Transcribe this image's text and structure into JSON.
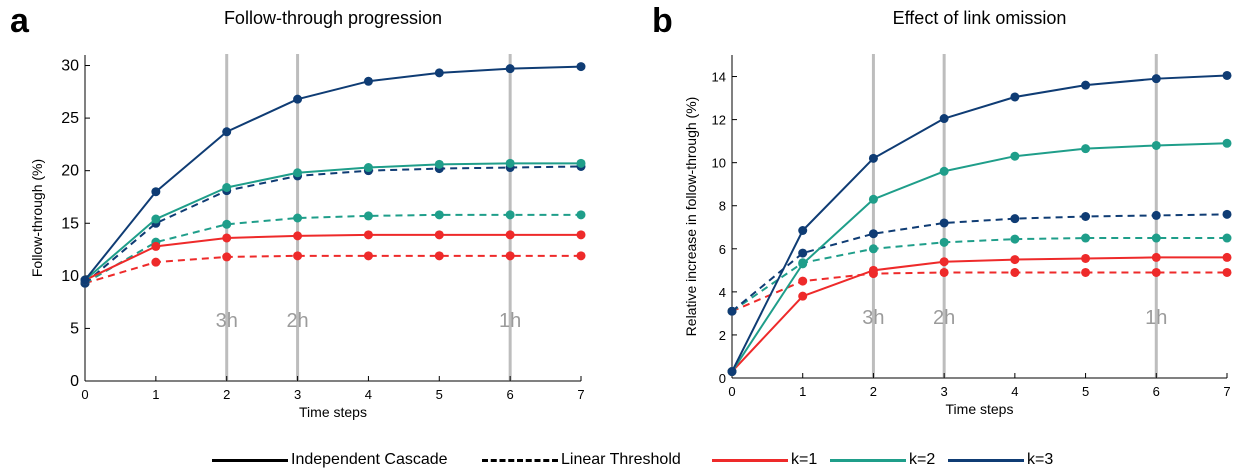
{
  "panels": [
    {
      "letter": "a",
      "title": "Follow-through progression",
      "ylabel": "Follow-through (%)",
      "xlabel": "Time steps"
    },
    {
      "letter": "b",
      "title": "Effect of link omission",
      "ylabel": "Relative increase in follow-through (%)",
      "xlabel": "Time steps"
    }
  ],
  "legend": {
    "ic": "Independent Cascade",
    "lt": "Linear Threshold",
    "k1": "k=1",
    "k2": "k=2",
    "k3": "k=3"
  },
  "colors": {
    "k1": "#ee2a2a",
    "k2": "#1f9e8a",
    "k3": "#0f3c74",
    "marker_lines": "#bdbdbd",
    "marker_text": "#9b9b9b"
  },
  "chart_data": [
    {
      "type": "line",
      "title": "Follow-through progression",
      "xlabel": "Time steps",
      "ylabel": "Follow-through (%)",
      "x": [
        0,
        1,
        2,
        3,
        4,
        5,
        6,
        7
      ],
      "xlim": [
        0,
        7
      ],
      "ylim": [
        0,
        31
      ],
      "xticks": [
        "0",
        "1",
        "2",
        "3",
        "4",
        "5",
        "6",
        "7"
      ],
      "yticks": [
        "0",
        "5",
        "10",
        "15",
        "20",
        "25",
        "30"
      ],
      "vertical_markers": [
        {
          "x": 2,
          "label": "3h"
        },
        {
          "x": 3,
          "label": "2h"
        },
        {
          "x": 6,
          "label": "1h"
        }
      ],
      "series": [
        {
          "model": "Independent Cascade",
          "k": "k=1",
          "style": "solid",
          "values": [
            9.6,
            12.8,
            13.6,
            13.8,
            13.9,
            13.9,
            13.9,
            13.9
          ]
        },
        {
          "model": "Independent Cascade",
          "k": "k=2",
          "style": "solid",
          "values": [
            9.6,
            15.4,
            18.4,
            19.8,
            20.3,
            20.6,
            20.7,
            20.7
          ]
        },
        {
          "model": "Independent Cascade",
          "k": "k=3",
          "style": "solid",
          "values": [
            9.6,
            18.0,
            23.7,
            26.8,
            28.5,
            29.3,
            29.7,
            29.9
          ]
        },
        {
          "model": "Linear Threshold",
          "k": "k=1",
          "style": "dashed",
          "values": [
            9.3,
            11.3,
            11.8,
            11.9,
            11.9,
            11.9,
            11.9,
            11.9
          ]
        },
        {
          "model": "Linear Threshold",
          "k": "k=2",
          "style": "dashed",
          "values": [
            9.3,
            13.2,
            14.9,
            15.5,
            15.7,
            15.8,
            15.8,
            15.8
          ]
        },
        {
          "model": "Linear Threshold",
          "k": "k=3",
          "style": "dashed",
          "values": [
            9.3,
            15.0,
            18.1,
            19.5,
            20.0,
            20.2,
            20.3,
            20.4
          ]
        }
      ]
    },
    {
      "type": "line",
      "title": "Effect of link omission",
      "xlabel": "Time steps",
      "ylabel": "Relative increase in follow-through (%)",
      "x": [
        0,
        1,
        2,
        3,
        4,
        5,
        6,
        7
      ],
      "xlim": [
        0,
        7
      ],
      "ylim": [
        0,
        15
      ],
      "xticks": [
        "0",
        "1",
        "2",
        "3",
        "4",
        "5",
        "6",
        "7"
      ],
      "yticks": [
        "0",
        "2",
        "4",
        "6",
        "8",
        "10",
        "12",
        "14"
      ],
      "vertical_markers": [
        {
          "x": 2,
          "label": "3h"
        },
        {
          "x": 3,
          "label": "2h"
        },
        {
          "x": 6,
          "label": "1h"
        }
      ],
      "series": [
        {
          "model": "Independent Cascade",
          "k": "k=1",
          "style": "solid",
          "values": [
            0.3,
            3.8,
            5.0,
            5.4,
            5.5,
            5.55,
            5.6,
            5.6
          ]
        },
        {
          "model": "Independent Cascade",
          "k": "k=2",
          "style": "solid",
          "values": [
            0.3,
            5.3,
            8.3,
            9.6,
            10.3,
            10.65,
            10.8,
            10.9
          ]
        },
        {
          "model": "Independent Cascade",
          "k": "k=3",
          "style": "solid",
          "values": [
            0.3,
            6.85,
            10.2,
            12.05,
            13.05,
            13.6,
            13.9,
            14.05
          ]
        },
        {
          "model": "Linear Threshold",
          "k": "k=1",
          "style": "dashed",
          "values": [
            3.1,
            4.5,
            4.85,
            4.9,
            4.9,
            4.9,
            4.9,
            4.9
          ]
        },
        {
          "model": "Linear Threshold",
          "k": "k=2",
          "style": "dashed",
          "values": [
            3.1,
            5.35,
            6.0,
            6.3,
            6.45,
            6.5,
            6.5,
            6.5
          ]
        },
        {
          "model": "Linear Threshold",
          "k": "k=3",
          "style": "dashed",
          "values": [
            3.1,
            5.8,
            6.7,
            7.2,
            7.4,
            7.5,
            7.55,
            7.6
          ]
        }
      ]
    }
  ]
}
